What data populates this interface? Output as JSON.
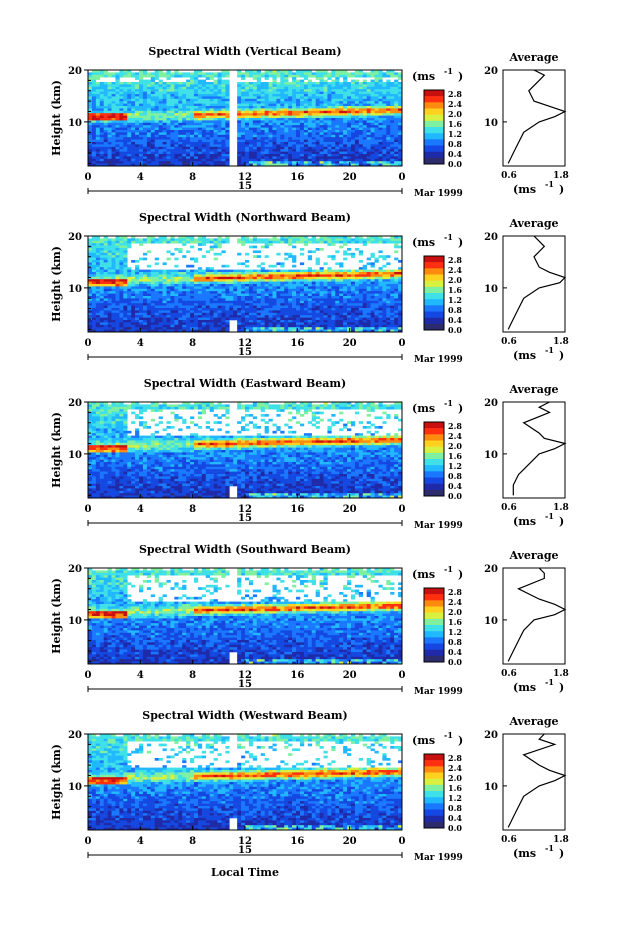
{
  "figure": {
    "xlabel": "Local Time",
    "date_label": "Mar 1999",
    "day_label": "15",
    "units": "(ms",
    "units_exp": "-1",
    "ylabel": "Height (km)",
    "average_title": "Average",
    "x_ticks": [
      "0",
      "4",
      "8",
      "12",
      "16",
      "20",
      "0"
    ],
    "y_ticks": [
      "20",
      "10"
    ],
    "avg_x_ticks": [
      "0.6",
      "1.8"
    ],
    "colorbar_ticks": [
      "2.8",
      "2.4",
      "2.0",
      "1.6",
      "1.2",
      "0.8",
      "0.4",
      "0.0"
    ],
    "colorbar_colors": [
      "#2b2b6e",
      "#1f2aa8",
      "#1448e0",
      "#1a78ff",
      "#22b8ff",
      "#3fe0e8",
      "#7ff0a0",
      "#d8f040",
      "#ffd020",
      "#ff8a10",
      "#ff3010",
      "#c81010"
    ]
  },
  "chart_data": [
    {
      "type": "heatmap",
      "title": "Spectral Width (Vertical Beam)",
      "xlabel": "Local Time",
      "ylabel": "Height (km)",
      "xlim": [
        0,
        24
      ],
      "ylim": [
        1.5,
        20
      ],
      "clim": [
        0.0,
        3.0
      ],
      "colorbar_label": "(ms-1)",
      "peak_layer_km": [
        11,
        12
      ],
      "average_profile": {
        "x_range": [
          0.6,
          1.8
        ],
        "height_km": [
          2,
          4,
          6,
          8,
          10,
          11,
          12,
          13,
          14,
          16,
          18,
          19,
          20
        ],
        "width_ms": [
          0.7,
          0.8,
          0.9,
          1.0,
          1.3,
          1.6,
          1.8,
          1.5,
          1.2,
          1.1,
          1.3,
          1.4,
          1.2
        ]
      }
    },
    {
      "type": "heatmap",
      "title": "Spectral Width (Northward Beam)",
      "xlabel": "Local Time",
      "ylabel": "Height (km)",
      "xlim": [
        0,
        24
      ],
      "ylim": [
        1.5,
        20
      ],
      "clim": [
        0.0,
        3.0
      ],
      "colorbar_label": "(ms-1)",
      "peak_layer_km": [
        11,
        13
      ],
      "average_profile": {
        "x_range": [
          0.6,
          1.8
        ],
        "height_km": [
          2,
          4,
          6,
          8,
          10,
          11,
          12,
          13,
          14,
          16,
          18,
          19,
          20
        ],
        "width_ms": [
          0.7,
          0.8,
          0.9,
          1.0,
          1.3,
          1.7,
          1.8,
          1.5,
          1.3,
          1.2,
          1.4,
          1.3,
          1.2
        ]
      }
    },
    {
      "type": "heatmap",
      "title": "Spectral Width (Eastward Beam)",
      "xlabel": "Local Time",
      "ylabel": "Height (km)",
      "xlim": [
        0,
        24
      ],
      "ylim": [
        1.5,
        20
      ],
      "clim": [
        0.0,
        3.0
      ],
      "colorbar_label": "(ms-1)",
      "peak_layer_km": [
        11,
        13
      ],
      "average_profile": {
        "x_range": [
          0.6,
          1.8
        ],
        "height_km": [
          2,
          4,
          6,
          8,
          10,
          11,
          12,
          13,
          14,
          16,
          18,
          19,
          20
        ],
        "width_ms": [
          0.8,
          0.8,
          0.9,
          1.1,
          1.3,
          1.6,
          1.8,
          1.4,
          1.3,
          1.0,
          1.5,
          1.3,
          1.5
        ]
      }
    },
    {
      "type": "heatmap",
      "title": "Spectral Width (Southward Beam)",
      "xlabel": "Local Time",
      "ylabel": "Height (km)",
      "xlim": [
        0,
        24
      ],
      "ylim": [
        1.5,
        20
      ],
      "clim": [
        0.0,
        3.0
      ],
      "colorbar_label": "(ms-1)",
      "peak_layer_km": [
        11,
        13
      ],
      "average_profile": {
        "x_range": [
          0.6,
          1.8
        ],
        "height_km": [
          2,
          4,
          6,
          8,
          10,
          11,
          12,
          13,
          14,
          16,
          18,
          19,
          20
        ],
        "width_ms": [
          0.7,
          0.8,
          0.9,
          1.0,
          1.2,
          1.6,
          1.8,
          1.6,
          1.3,
          0.9,
          1.4,
          1.4,
          1.3
        ]
      }
    },
    {
      "type": "heatmap",
      "title": "Spectral Width (Westward Beam)",
      "xlabel": "Local Time",
      "ylabel": "Height (km)",
      "xlim": [
        0,
        24
      ],
      "ylim": [
        1.5,
        20
      ],
      "clim": [
        0.0,
        3.0
      ],
      "colorbar_label": "(ms-1)",
      "peak_layer_km": [
        11,
        13
      ],
      "average_profile": {
        "x_range": [
          0.6,
          1.8
        ],
        "height_km": [
          2,
          4,
          6,
          8,
          10,
          11,
          12,
          13,
          14,
          16,
          18,
          19,
          20
        ],
        "width_ms": [
          0.7,
          0.8,
          0.9,
          1.0,
          1.3,
          1.6,
          1.8,
          1.5,
          1.3,
          1.0,
          1.6,
          1.3,
          1.4
        ]
      }
    }
  ]
}
